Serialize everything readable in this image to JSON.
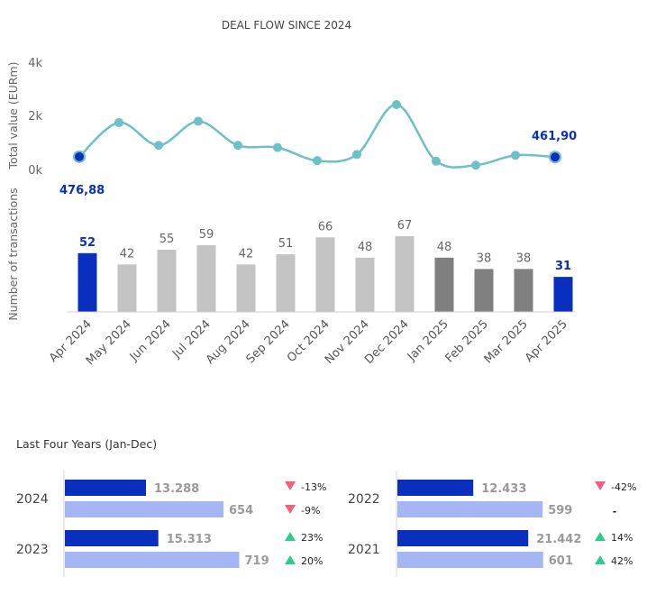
{
  "chart_data": [
    {
      "type": "line",
      "title": "DEAL FLOW SINCE 2024",
      "ylabel": "Total value (EURm)",
      "ylim": [
        0,
        4000
      ],
      "y_ticks": [
        "4k",
        "2k",
        "0k"
      ],
      "categories": [
        "Apr 2024",
        "May 2024",
        "Jun 2024",
        "Jul 2024",
        "Aug 2024",
        "Sep 2024",
        "Oct 2024",
        "Nov 2024",
        "Dec 2024",
        "Jan 2025",
        "Feb 2025",
        "Mar 2025",
        "Apr 2025"
      ],
      "values": [
        476.88,
        1750,
        900,
        1800,
        900,
        820,
        330,
        560,
        2420,
        310,
        160,
        530,
        461.9
      ],
      "labels": {
        "first": "476,88",
        "last": "461,90"
      },
      "line_color": "#6dbfc8",
      "highlight_color": "#0a2fbf"
    },
    {
      "type": "bar",
      "ylabel": "Number of transactions",
      "categories": [
        "Apr 2024",
        "May 2024",
        "Jun 2024",
        "Jul 2024",
        "Aug 2024",
        "Sep 2024",
        "Oct 2024",
        "Nov 2024",
        "Dec 2024",
        "Jan 2025",
        "Feb 2025",
        "Mar 2025",
        "Apr 2025"
      ],
      "values": [
        52,
        42,
        55,
        59,
        42,
        51,
        66,
        48,
        67,
        48,
        38,
        38,
        31
      ],
      "colors": [
        "#0a2fbf",
        "#c3c3c3",
        "#c3c3c3",
        "#c3c3c3",
        "#c3c3c3",
        "#c3c3c3",
        "#c3c3c3",
        "#c3c3c3",
        "#c3c3c3",
        "#808080",
        "#808080",
        "#808080",
        "#0a2fbf"
      ],
      "highlight": [
        true,
        false,
        false,
        false,
        false,
        false,
        false,
        false,
        false,
        false,
        false,
        false,
        true
      ]
    },
    {
      "type": "bar",
      "title": "Last Four Years (Jan-Dec)",
      "orientation": "horizontal",
      "groups": [
        {
          "year": "2024",
          "value": 13288,
          "value_label": "13.288",
          "count": 654,
          "count_label": "654",
          "value_change": "-13%",
          "count_change": "-9%",
          "value_dir": "down",
          "count_dir": "down"
        },
        {
          "year": "2023",
          "value": 15313,
          "value_label": "15.313",
          "count": 719,
          "count_label": "719",
          "value_change": "23%",
          "count_change": "20%",
          "value_dir": "up",
          "count_dir": "up"
        },
        {
          "year": "2022",
          "value": 12433,
          "value_label": "12.433",
          "count": 599,
          "count_label": "599",
          "value_change": "-42%",
          "count_change": "-",
          "value_dir": "down",
          "count_dir": "none"
        },
        {
          "year": "2021",
          "value": 21442,
          "value_label": "21.442",
          "count": 601,
          "count_label": "601",
          "value_change": "14%",
          "count_change": "42%",
          "value_dir": "up",
          "count_dir": "up"
        }
      ],
      "value_color": "#0a2fbf",
      "count_color": "#a5b6f5",
      "up_color": "#2ecc8a",
      "down_color": "#f0607a"
    }
  ]
}
